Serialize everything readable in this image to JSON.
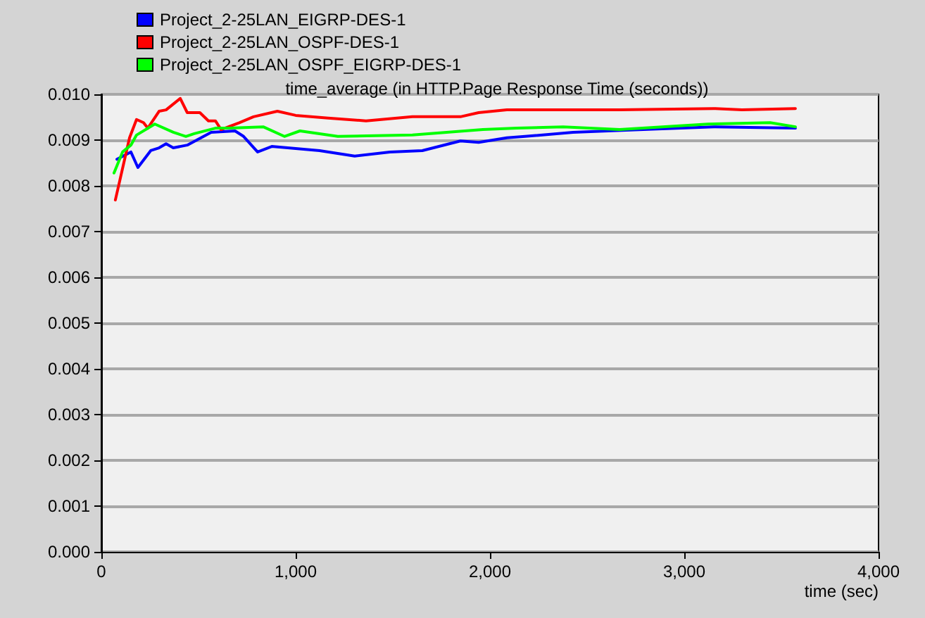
{
  "chart_data": {
    "type": "line",
    "title": "time_average (in HTTP.Page Response Time (seconds))",
    "xlabel": "time (sec)",
    "xlim": [
      0,
      4000
    ],
    "xticks": [
      0,
      {
        "value": 1000,
        "label": "1,000"
      },
      {
        "value": 2000,
        "label": "2,000"
      },
      {
        "value": 3000,
        "label": "3,000"
      },
      {
        "value": 4000,
        "label": "4,000"
      }
    ],
    "ylim": [
      0,
      0.01
    ],
    "yticks": [
      {
        "value": 0,
        "label": "0.000"
      },
      {
        "value": 0.001,
        "label": "0.001"
      },
      {
        "value": 0.002,
        "label": "0.002"
      },
      {
        "value": 0.003,
        "label": "0.003"
      },
      {
        "value": 0.004,
        "label": "0.004"
      },
      {
        "value": 0.005,
        "label": "0.005"
      },
      {
        "value": 0.006,
        "label": "0.006"
      },
      {
        "value": 0.007,
        "label": "0.007"
      },
      {
        "value": 0.008,
        "label": "0.008"
      },
      {
        "value": 0.009,
        "label": "0.009"
      },
      {
        "value": 0.01,
        "label": "0.010"
      }
    ],
    "grid": "y",
    "legend": "top left",
    "marker": "none",
    "line_style": "solid",
    "series": [
      {
        "name": "Project_2-25LAN_EIGRP-DES-1",
        "color": "#0000ff",
        "x": [
          80,
          152,
          188,
          254,
          297,
          333,
          370,
          442,
          565,
          688,
          732,
          804,
          877,
          1123,
          1304,
          1485,
          1652,
          1848,
          1942,
          2087,
          2181,
          2427,
          2790,
          3152,
          3572
        ],
        "values": [
          0.00858,
          0.00874,
          0.0084,
          0.00877,
          0.00883,
          0.00892,
          0.00883,
          0.00889,
          0.00917,
          0.0092,
          0.00908,
          0.00874,
          0.00886,
          0.00877,
          0.00865,
          0.00874,
          0.00877,
          0.00898,
          0.00895,
          0.00905,
          0.00908,
          0.00917,
          0.00923,
          0.00929,
          0.00926
        ]
      },
      {
        "name": "Project_2-25LAN_OSPF-DES-1",
        "color": "#ff0000",
        "x": [
          72,
          145,
          181,
          217,
          239,
          297,
          333,
          406,
          442,
          507,
          551,
          587,
          616,
          710,
          783,
          906,
          1000,
          1167,
          1362,
          1601,
          1848,
          1942,
          2087,
          2667,
          3152,
          3297,
          3572
        ],
        "values": [
          0.00769,
          0.00905,
          0.00945,
          0.00938,
          0.00926,
          0.00963,
          0.00966,
          0.00991,
          0.0096,
          0.0096,
          0.00942,
          0.00942,
          0.00923,
          0.00938,
          0.00951,
          0.00963,
          0.00954,
          0.00948,
          0.00942,
          0.00951,
          0.00951,
          0.0096,
          0.00966,
          0.00966,
          0.00969,
          0.00966,
          0.00969
        ]
      },
      {
        "name": "Project_2-25LAN_OSPF_EIGRP-DES-1",
        "color": "#00ff00",
        "x": [
          65,
          109,
          152,
          181,
          275,
          370,
          435,
          478,
          587,
          659,
          833,
          942,
          1022,
          1217,
          1601,
          1964,
          2138,
          2377,
          2667,
          3123,
          3442,
          3572
        ],
        "values": [
          0.00828,
          0.00874,
          0.00889,
          0.00911,
          0.00935,
          0.00917,
          0.00908,
          0.00914,
          0.00926,
          0.00926,
          0.00929,
          0.00908,
          0.0092,
          0.00908,
          0.00911,
          0.00923,
          0.00926,
          0.00929,
          0.00923,
          0.00935,
          0.00938,
          0.00929
        ]
      }
    ]
  }
}
